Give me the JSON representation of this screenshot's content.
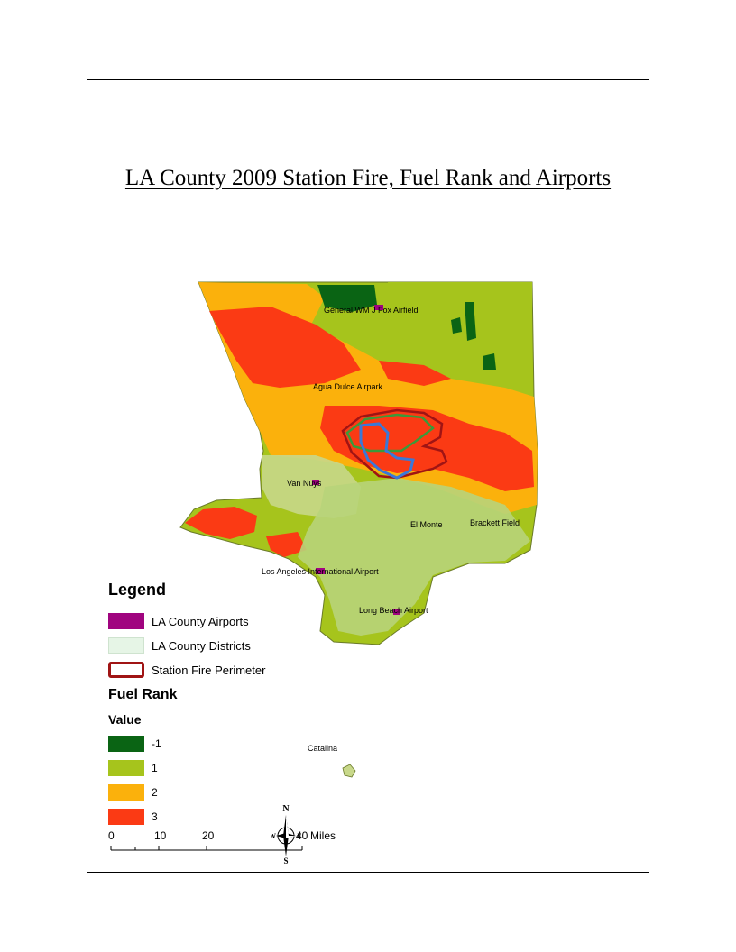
{
  "title": "LA County 2009 Station Fire, Fuel Rank and Airports",
  "airports": [
    {
      "name": "General WM J Fox Airfield"
    },
    {
      "name": "Agua Dulce Airpark"
    },
    {
      "name": "Van Nuys"
    },
    {
      "name": "El Monte"
    },
    {
      "name": "Brackett Field"
    },
    {
      "name": "Los Angeles International Airport"
    },
    {
      "name": "Long Beach Airport"
    }
  ],
  "place_labels": {
    "catalina": "Catalina"
  },
  "legend": {
    "title": "Legend",
    "items": [
      {
        "label": "LA County Airports",
        "color": "#a0047f"
      },
      {
        "label": "LA County Districts",
        "color": "#e6f5e6"
      },
      {
        "label": "Station Fire Perimeter",
        "color": "#a01414"
      }
    ],
    "fuel_rank_title": "Fuel Rank",
    "value_title": "Value",
    "values": [
      {
        "label": "-1",
        "color": "#0a6414"
      },
      {
        "label": "1",
        "color": "#a6c41c"
      },
      {
        "label": "2",
        "color": "#fbb10c"
      },
      {
        "label": "3",
        "color": "#fb3a14"
      }
    ]
  },
  "scale_bar": {
    "ticks": [
      "0",
      "10",
      "20",
      "40"
    ],
    "unit": "Miles"
  },
  "north_arrow": {
    "n": "N",
    "s": "S",
    "e": "E",
    "w": "W"
  }
}
